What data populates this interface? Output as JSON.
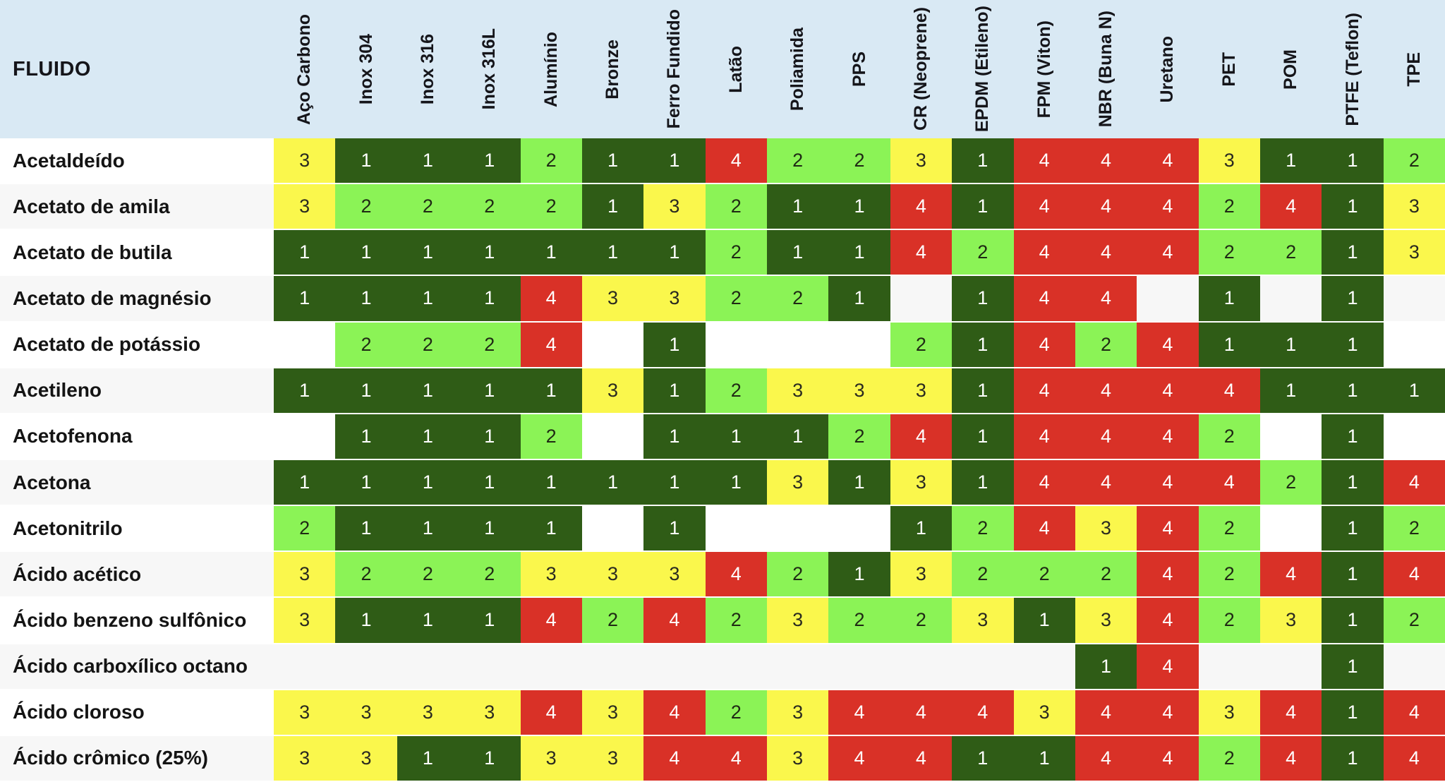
{
  "chart_data": {
    "type": "heatmap",
    "corner_label": "FLUIDO",
    "legend_position": "none",
    "grid": false,
    "value_range": [
      1,
      4
    ],
    "columns": [
      "Aço Carbono",
      "Inox 304",
      "Inox 316",
      "Inox 316L",
      "Alumínio",
      "Bronze",
      "Ferro Fundido",
      "Latão",
      "Poliamida",
      "PPS",
      "CR (Neoprene)",
      "EPDM (Etileno)",
      "FPM (Viton)",
      "NBR (Buna N)",
      "Uretano",
      "PET",
      "POM",
      "PTFE (Teflon)",
      "TPE"
    ],
    "rows": [
      {
        "fluid": "Acetaldeído",
        "values": [
          3,
          1,
          1,
          1,
          2,
          1,
          1,
          4,
          2,
          2,
          3,
          1,
          4,
          4,
          4,
          3,
          1,
          1,
          2
        ]
      },
      {
        "fluid": "Acetato de amila",
        "values": [
          3,
          2,
          2,
          2,
          2,
          1,
          3,
          2,
          1,
          1,
          4,
          1,
          4,
          4,
          4,
          2,
          4,
          1,
          3
        ]
      },
      {
        "fluid": "Acetato de butila",
        "values": [
          1,
          1,
          1,
          1,
          1,
          1,
          1,
          2,
          1,
          1,
          4,
          2,
          4,
          4,
          4,
          2,
          2,
          1,
          3
        ]
      },
      {
        "fluid": "Acetato de magnésio",
        "values": [
          1,
          1,
          1,
          1,
          4,
          3,
          3,
          2,
          2,
          1,
          null,
          1,
          4,
          4,
          null,
          1,
          null,
          1,
          null
        ]
      },
      {
        "fluid": "Acetato de potássio",
        "values": [
          null,
          2,
          2,
          2,
          4,
          null,
          1,
          null,
          null,
          null,
          2,
          1,
          4,
          2,
          4,
          1,
          1,
          1,
          null
        ]
      },
      {
        "fluid": "Acetileno",
        "values": [
          1,
          1,
          1,
          1,
          1,
          3,
          1,
          2,
          3,
          3,
          3,
          1,
          4,
          4,
          4,
          4,
          1,
          1,
          1
        ]
      },
      {
        "fluid": "Acetofenona",
        "values": [
          null,
          1,
          1,
          1,
          2,
          null,
          1,
          1,
          1,
          2,
          4,
          1,
          4,
          4,
          4,
          2,
          null,
          1,
          null
        ]
      },
      {
        "fluid": "Acetona",
        "values": [
          1,
          1,
          1,
          1,
          1,
          1,
          1,
          1,
          3,
          1,
          3,
          1,
          4,
          4,
          4,
          4,
          2,
          1,
          4
        ]
      },
      {
        "fluid": "Acetonitrilo",
        "values": [
          2,
          1,
          1,
          1,
          1,
          null,
          1,
          null,
          null,
          null,
          1,
          2,
          4,
          3,
          4,
          2,
          null,
          1,
          2
        ]
      },
      {
        "fluid": "Ácido acético",
        "values": [
          3,
          2,
          2,
          2,
          3,
          3,
          3,
          4,
          2,
          1,
          3,
          2,
          2,
          2,
          4,
          2,
          4,
          1,
          4
        ]
      },
      {
        "fluid": "Ácido benzeno sulfônico",
        "values": [
          3,
          1,
          1,
          1,
          4,
          2,
          4,
          2,
          3,
          2,
          2,
          3,
          1,
          3,
          4,
          2,
          3,
          1,
          2
        ]
      },
      {
        "fluid": "Ácido carboxílico octano",
        "values": [
          null,
          null,
          null,
          null,
          null,
          null,
          null,
          null,
          null,
          null,
          null,
          null,
          null,
          1,
          4,
          null,
          null,
          1,
          null
        ]
      },
      {
        "fluid": "Ácido cloroso",
        "values": [
          3,
          3,
          3,
          3,
          4,
          3,
          4,
          2,
          3,
          4,
          4,
          4,
          3,
          4,
          4,
          3,
          4,
          1,
          4
        ]
      },
      {
        "fluid": "Ácido crômico (25%)",
        "values": [
          3,
          3,
          1,
          1,
          3,
          3,
          4,
          4,
          3,
          4,
          4,
          1,
          1,
          4,
          4,
          2,
          4,
          1,
          4
        ]
      }
    ]
  },
  "colors": {
    "header_bg": "#d9e9f4",
    "row_bg": "#ffffff",
    "row_alt_bg": "#f7f7f7",
    "header_text": "#15151a",
    "value_colors": {
      "1": "#2f5c16",
      "2": "#8bf356",
      "3": "#faf74c",
      "4": "#d93127"
    },
    "value_text": {
      "1": "#ffffff",
      "2": "#1f2a14",
      "3": "#2a2a20",
      "4": "#ffffff"
    }
  }
}
